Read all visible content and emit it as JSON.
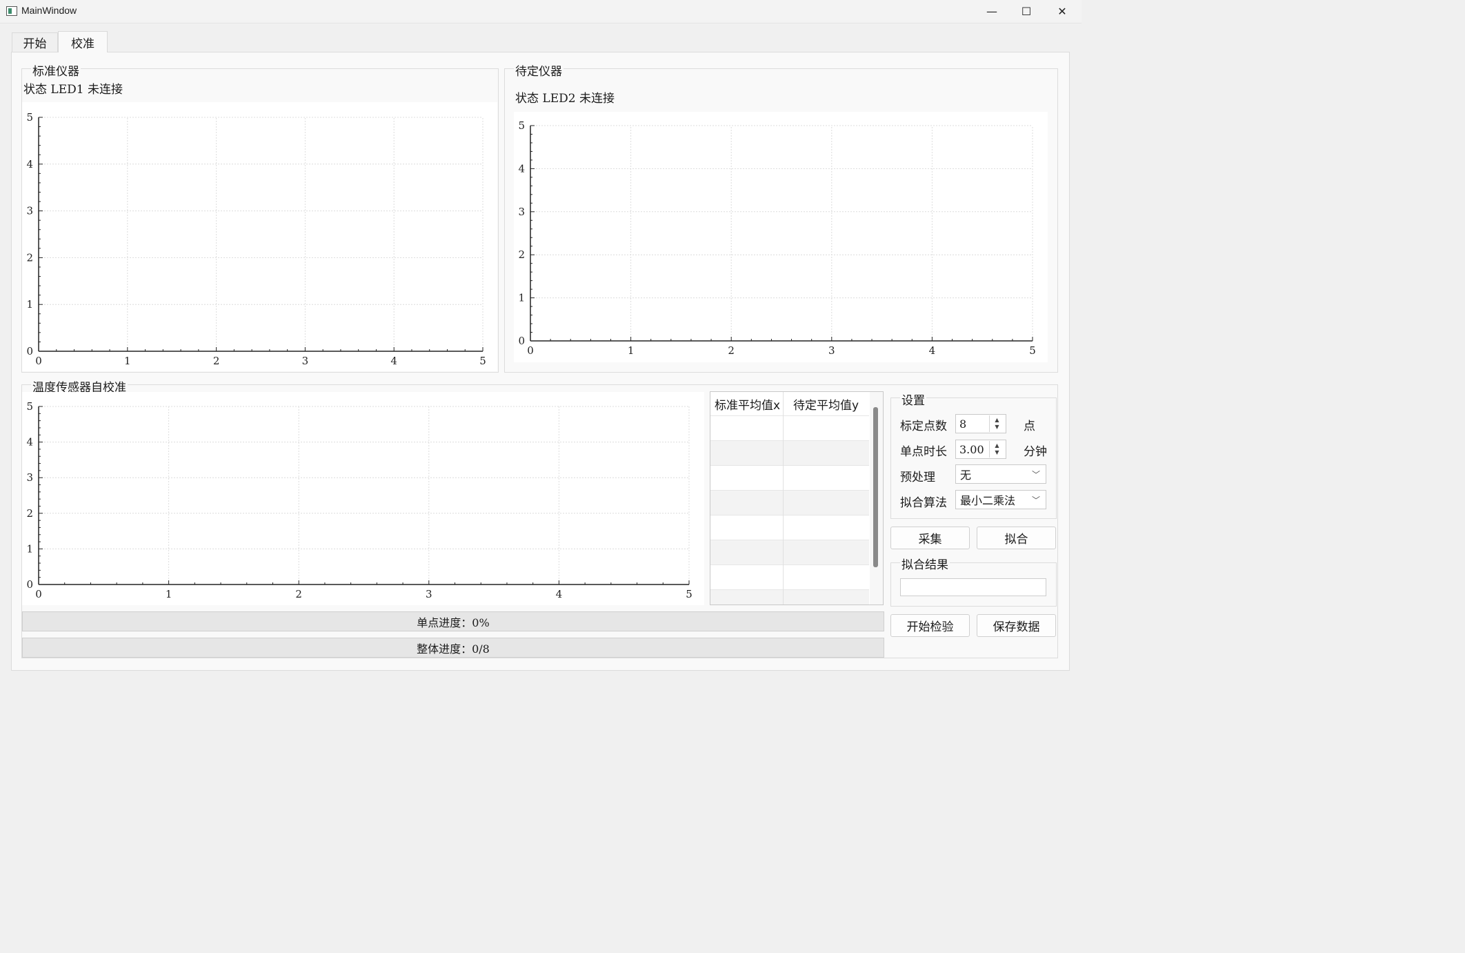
{
  "window": {
    "title": "MainWindow",
    "minimize_glyph": "—",
    "maximize_glyph": "☐",
    "close_glyph": "✕"
  },
  "tabs": [
    {
      "label": "开始",
      "active": false
    },
    {
      "label": "校准",
      "active": true
    }
  ],
  "standard_instrument": {
    "group_title": "标准仪器",
    "status_text": "状态 LED1 未连接"
  },
  "pending_instrument": {
    "group_title": "待定仪器",
    "status_text": "状态 LED2 未连接"
  },
  "self_calibration": {
    "group_title": "温度传感器自校准",
    "table": {
      "columns": [
        "标准平均值x",
        "待定平均值y"
      ],
      "rows": [
        [
          "",
          ""
        ],
        [
          "",
          ""
        ],
        [
          "",
          ""
        ],
        [
          "",
          ""
        ],
        [
          "",
          ""
        ],
        [
          "",
          ""
        ],
        [
          "",
          ""
        ],
        [
          "",
          ""
        ]
      ]
    },
    "single_progress": "单点进度：0%",
    "overall_progress": "整体进度：0/8"
  },
  "settings": {
    "group_title": "设置",
    "calib_points_label": "标定点数",
    "calib_points_value": "8",
    "calib_points_unit": "点",
    "single_duration_label": "单点时长",
    "single_duration_value": "3.00",
    "single_duration_unit": "分钟",
    "preprocess_label": "预处理",
    "preprocess_value": "无",
    "fit_algorithm_label": "拟合算法",
    "fit_algorithm_value": "最小二乘法",
    "collect_button": "采集",
    "fit_button": "拟合",
    "fit_result_title": "拟合结果",
    "fit_result_value": "",
    "start_check_button": "开始检验",
    "save_data_button": "保存数据"
  },
  "chart_data": [
    {
      "type": "scatter",
      "title": "",
      "xlabel": "",
      "ylabel": "",
      "xlim": [
        0,
        5
      ],
      "ylim": [
        0,
        5
      ],
      "x_ticks": [
        "0",
        "1",
        "2",
        "3",
        "4",
        "5"
      ],
      "y_ticks": [
        "0",
        "1",
        "2",
        "3",
        "4",
        "5"
      ],
      "grid": true,
      "series": []
    },
    {
      "type": "scatter",
      "title": "",
      "xlabel": "",
      "ylabel": "",
      "xlim": [
        0,
        5
      ],
      "ylim": [
        0,
        5
      ],
      "x_ticks": [
        "0",
        "1",
        "2",
        "3",
        "4",
        "5"
      ],
      "y_ticks": [
        "0",
        "1",
        "2",
        "3",
        "4",
        "5"
      ],
      "grid": true,
      "series": []
    },
    {
      "type": "scatter",
      "title": "",
      "xlabel": "",
      "ylabel": "",
      "xlim": [
        0,
        5
      ],
      "ylim": [
        0,
        5
      ],
      "x_ticks": [
        "0",
        "1",
        "2",
        "3",
        "4",
        "5"
      ],
      "y_ticks": [
        "0",
        "1",
        "2",
        "3",
        "4",
        "5"
      ],
      "grid": true,
      "series": []
    }
  ]
}
